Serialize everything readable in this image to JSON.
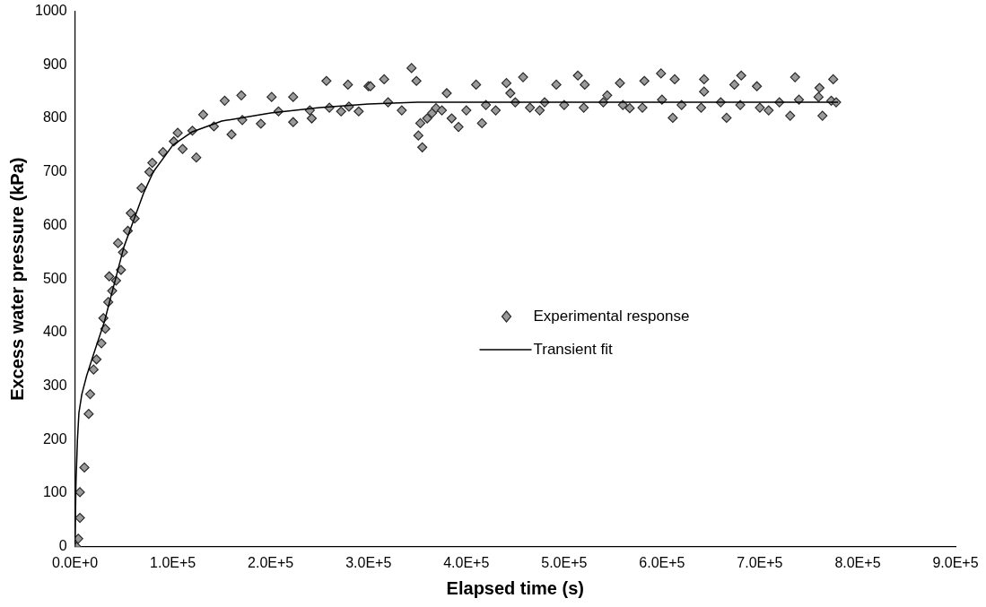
{
  "chart_data": {
    "type": "scatter",
    "xlabel": "Elapsed time (s)",
    "ylabel": "Excess water pressure (kPa)",
    "marker": "diamond",
    "grid": false,
    "legend": "center right",
    "xlim": [
      0,
      900000
    ],
    "xticks": [
      {
        "value": 0,
        "label": "0.0E+0"
      },
      {
        "value": 100000,
        "label": "1.0E+5"
      },
      {
        "value": 200000,
        "label": "2.0E+5"
      },
      {
        "value": 300000,
        "label": "3.0E+5"
      },
      {
        "value": 400000,
        "label": "4.0E+5"
      },
      {
        "value": 500000,
        "label": "5.0E+5"
      },
      {
        "value": 600000,
        "label": "6.0E+5"
      },
      {
        "value": 700000,
        "label": "7.0E+5"
      },
      {
        "value": 800000,
        "label": "8.0E+5"
      },
      {
        "value": 900000,
        "label": "9.0E+5"
      }
    ],
    "ylim": [
      0,
      1000
    ],
    "yticks": [
      0,
      100,
      200,
      300,
      400,
      500,
      600,
      700,
      800,
      900,
      1000
    ],
    "series": [
      {
        "name": "Experimental response",
        "type": "scatter",
        "color": "#9a9a9a",
        "x": [
          1500,
          3300,
          5000,
          5000,
          9600,
          14000,
          15500,
          19000,
          22000,
          27000,
          29000,
          31000,
          34000,
          35000,
          38000,
          42000,
          44000,
          47000,
          49000,
          54000,
          57000,
          61000,
          68000,
          76000,
          79000,
          90000,
          101000,
          105000,
          110000,
          120000,
          124000,
          131000,
          142000,
          153000,
          160000,
          170000,
          171000,
          190000,
          201000,
          208000,
          223000,
          223000,
          240000,
          242000,
          257000,
          260000,
          272000,
          279000,
          280000,
          290000,
          300000,
          302000,
          316000,
          320000,
          334000,
          344000,
          349000,
          351000,
          353000,
          355000,
          360000,
          365000,
          369000,
          375000,
          380000,
          385000,
          392000,
          400000,
          410000,
          416000,
          420000,
          430000,
          441000,
          445000,
          450000,
          458000,
          465000,
          475000,
          480000,
          492000,
          500000,
          514000,
          520000,
          521000,
          540000,
          544000,
          557000,
          560000,
          567000,
          580000,
          582000,
          599000,
          600000,
          611000,
          613000,
          620000,
          640000,
          643000,
          643000,
          660000,
          666000,
          674000,
          680000,
          681000,
          697000,
          700000,
          709000,
          720000,
          731000,
          736000,
          740000,
          760000,
          761000,
          764000,
          773000,
          775000,
          778000
        ],
        "values": [
          0,
          15,
          54,
          102,
          148,
          248,
          285,
          331,
          350,
          380,
          427,
          407,
          457,
          505,
          478,
          497,
          567,
          517,
          550,
          590,
          623,
          613,
          670,
          700,
          717,
          737,
          757,
          773,
          743,
          777,
          727,
          807,
          785,
          833,
          770,
          843,
          797,
          790,
          840,
          813,
          793,
          840,
          815,
          800,
          870,
          820,
          813,
          863,
          822,
          813,
          860,
          860,
          873,
          830,
          815,
          894,
          870,
          768,
          791,
          746,
          800,
          810,
          819,
          815,
          847,
          800,
          784,
          815,
          863,
          791,
          825,
          815,
          866,
          847,
          830,
          877,
          820,
          815,
          830,
          863,
          825,
          880,
          820,
          863,
          830,
          843,
          866,
          825,
          819,
          820,
          870,
          884,
          835,
          801,
          873,
          825,
          820,
          873,
          850,
          830,
          801,
          863,
          825,
          880,
          860,
          820,
          815,
          830,
          805,
          877,
          835,
          840,
          857,
          805,
          833,
          873,
          830
        ]
      },
      {
        "name": "Transient fit",
        "type": "line",
        "color": "#000000",
        "marker": "none",
        "x": [
          0,
          1000,
          2500,
          4000,
          7000,
          12000,
          20000,
          30000,
          40000,
          50000,
          60000,
          70000,
          80000,
          90000,
          100000,
          120000,
          150000,
          200000,
          250000,
          300000,
          350000,
          400000,
          500000,
          600000,
          700000,
          780000
        ],
        "values": [
          0,
          120,
          200,
          250,
          285,
          320,
          365,
          420,
          490,
          560,
          610,
          660,
          700,
          725,
          750,
          775,
          795,
          810,
          820,
          827,
          830,
          830,
          830,
          830,
          830,
          830
        ]
      }
    ]
  }
}
